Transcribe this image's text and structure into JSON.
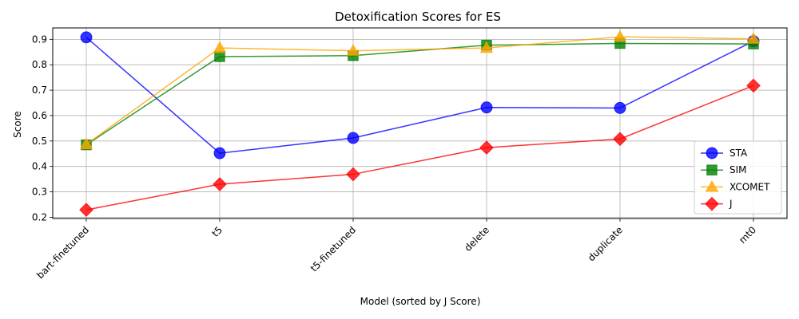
{
  "chart_data": {
    "type": "line",
    "title": "Detoxification Scores for ES",
    "xlabel": "Model (sorted by J Score)",
    "ylabel": "Score",
    "categories": [
      "bart-finetuned",
      "t5",
      "t5-finetuned",
      "delete",
      "duplicate",
      "mt0"
    ],
    "ylim": [
      0.195,
      0.945
    ],
    "yticks": [
      "0.2",
      "0.3",
      "0.4",
      "0.5",
      "0.6",
      "0.7",
      "0.8",
      "0.9"
    ],
    "grid": true,
    "legend_position": "bottom-right",
    "series": [
      {
        "name": "STA",
        "color": "#0000ff",
        "marker": "circle",
        "values": [
          0.908,
          0.452,
          0.512,
          0.632,
          0.63,
          0.893
        ]
      },
      {
        "name": "SIM",
        "color": "#008000",
        "marker": "square",
        "values": [
          0.485,
          0.832,
          0.836,
          0.877,
          0.884,
          0.882
        ]
      },
      {
        "name": "XCOMET",
        "color": "#ffa500",
        "marker": "triangle",
        "values": [
          0.487,
          0.866,
          0.855,
          0.866,
          0.91,
          0.902
        ]
      },
      {
        "name": "J",
        "color": "#ff0000",
        "marker": "diamond",
        "values": [
          0.229,
          0.33,
          0.369,
          0.474,
          0.508,
          0.718
        ]
      }
    ]
  }
}
